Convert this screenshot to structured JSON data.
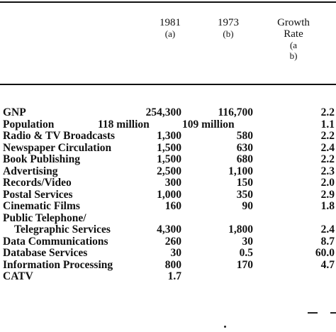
{
  "table": {
    "headers": {
      "col_1981_year": "1981",
      "col_1981_tag": "(a)",
      "col_1973_year": "1973",
      "col_1973_tag": "(b)",
      "growth_line1": "Growth",
      "growth_line2": "Rate",
      "growth_line3": "(a",
      "growth_line4": "b)"
    },
    "rows": [
      {
        "label": "GNP",
        "v1981": "254,300",
        "v1973": "116,700",
        "growth": "2.2"
      },
      {
        "label": "Population",
        "v1981": "118 million",
        "v1973": "109 million",
        "growth": "1.1"
      },
      {
        "label": "Radio & TV Broadcasts",
        "v1981": "1,300",
        "v1973": "580",
        "growth": "2.2"
      },
      {
        "label": "Newspaper Circulation",
        "v1981": "1,500",
        "v1973": "630",
        "growth": "2.4"
      },
      {
        "label": "Book Publishing",
        "v1981": "1,500",
        "v1973": "680",
        "growth": "2.2"
      },
      {
        "label": "Advertising",
        "v1981": "2,500",
        "v1973": "1,100",
        "growth": "2.3"
      },
      {
        "label": "Records/Video",
        "v1981": "300",
        "v1973": "150",
        "growth": "2.0"
      },
      {
        "label": "Postal Services",
        "v1981": "1,000",
        "v1973": "350",
        "growth": "2.9"
      },
      {
        "label": "Cinematic Films",
        "v1981": "160",
        "v1973": "90",
        "growth": "1.8"
      },
      {
        "label": "Public Telephone/",
        "v1981": "",
        "v1973": "",
        "growth": ""
      },
      {
        "label": "Telegraphic Services",
        "v1981": "4,300",
        "v1973": "1,800",
        "growth": "2.4"
      },
      {
        "label": "Data Communications",
        "v1981": "260",
        "v1973": "30",
        "growth": "8.7"
      },
      {
        "label": "Database Services",
        "v1981": "30",
        "v1973": "0.5",
        "growth": "60.0"
      },
      {
        "label": "Information Processing",
        "v1981": "800",
        "v1973": "170",
        "growth": "4.7"
      },
      {
        "label": "CATV",
        "v1981": "1.7",
        "v1973": "",
        "growth": ""
      }
    ]
  }
}
